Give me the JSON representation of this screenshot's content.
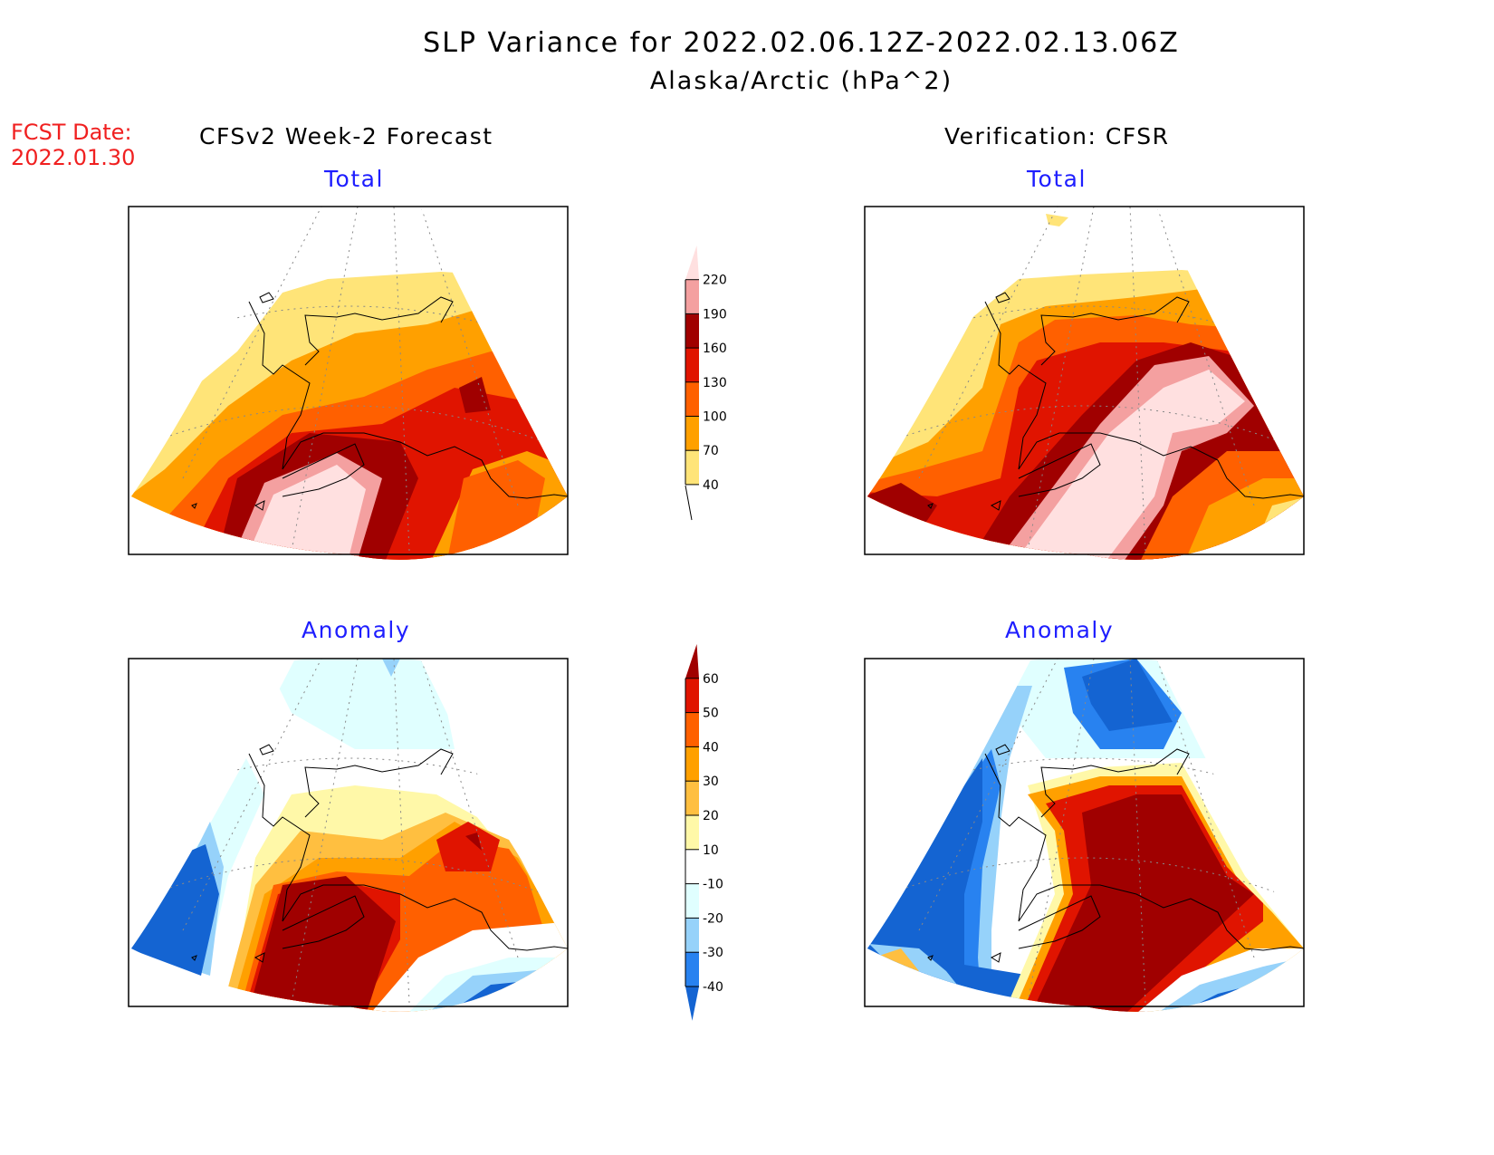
{
  "header": {
    "title": "SLP Variance for 2022.02.06.12Z-2022.02.13.06Z",
    "subtitle": "Alaska/Arctic (hPa^2)",
    "fcst_label": "FCST Date:",
    "fcst_date": "2022.01.30"
  },
  "columns": {
    "left": "CFSv2 Week-2 Forecast",
    "right": "Verification: CFSR"
  },
  "panels": {
    "forecast_total": "Total",
    "verif_total": "Total",
    "forecast_anomaly": "Anomaly",
    "verif_anomaly": "Anomaly"
  },
  "chart_data": [
    {
      "type": "heatmap",
      "name": "total-colorbar",
      "levels": [
        "40",
        "70",
        "100",
        "130",
        "160",
        "190",
        "220"
      ],
      "colors": [
        "#ffe478",
        "#ffa000",
        "#ff6000",
        "#e01400",
        "#a00000",
        "#f4a0a0",
        "#ffe0e0"
      ]
    },
    {
      "type": "heatmap",
      "name": "anomaly-colorbar",
      "levels": [
        "-40",
        "-30",
        "-20",
        "-10",
        "10",
        "20",
        "30",
        "40",
        "50",
        "60"
      ],
      "colors": [
        "#1464d2",
        "#2882f0",
        "#96d2fa",
        "#e0ffff",
        "#ffffff",
        "#fff8a8",
        "#ffbf40",
        "#ffa000",
        "#ff6000",
        "#e01400",
        "#a00000"
      ]
    }
  ]
}
